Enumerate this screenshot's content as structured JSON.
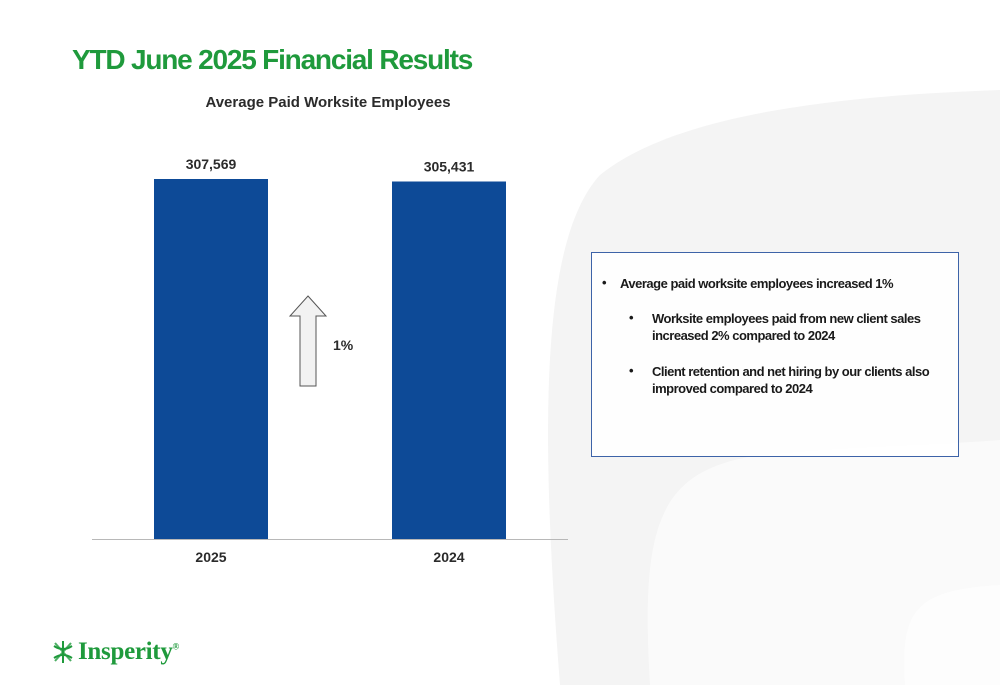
{
  "slide": {
    "title": "YTD June 2025 Financial Results"
  },
  "chart_data": {
    "type": "bar",
    "title": "Average Paid Worksite Employees",
    "categories": [
      "2025",
      "2024"
    ],
    "values": [
      307569,
      305431
    ],
    "value_labels": [
      "307,569",
      "305,431"
    ],
    "ylim": [
      0,
      307569
    ],
    "grid": false,
    "bar_color": "#0d4a97",
    "annotation": {
      "text": "1%",
      "direction": "up"
    }
  },
  "callout": {
    "bullets": [
      {
        "level": 1,
        "text": "Average paid worksite employees increased 1%"
      },
      {
        "level": 2,
        "text": "Worksite employees paid from new client sales increased 2% compared to 2024"
      },
      {
        "level": 2,
        "text": "Client retention and net hiring by our clients also improved compared to 2024"
      }
    ],
    "bullet_glyph": "•",
    "border_color": "#3d63a8"
  },
  "logo": {
    "text": "Insperity",
    "registered_mark": "®",
    "color": "#1f9a3c"
  }
}
